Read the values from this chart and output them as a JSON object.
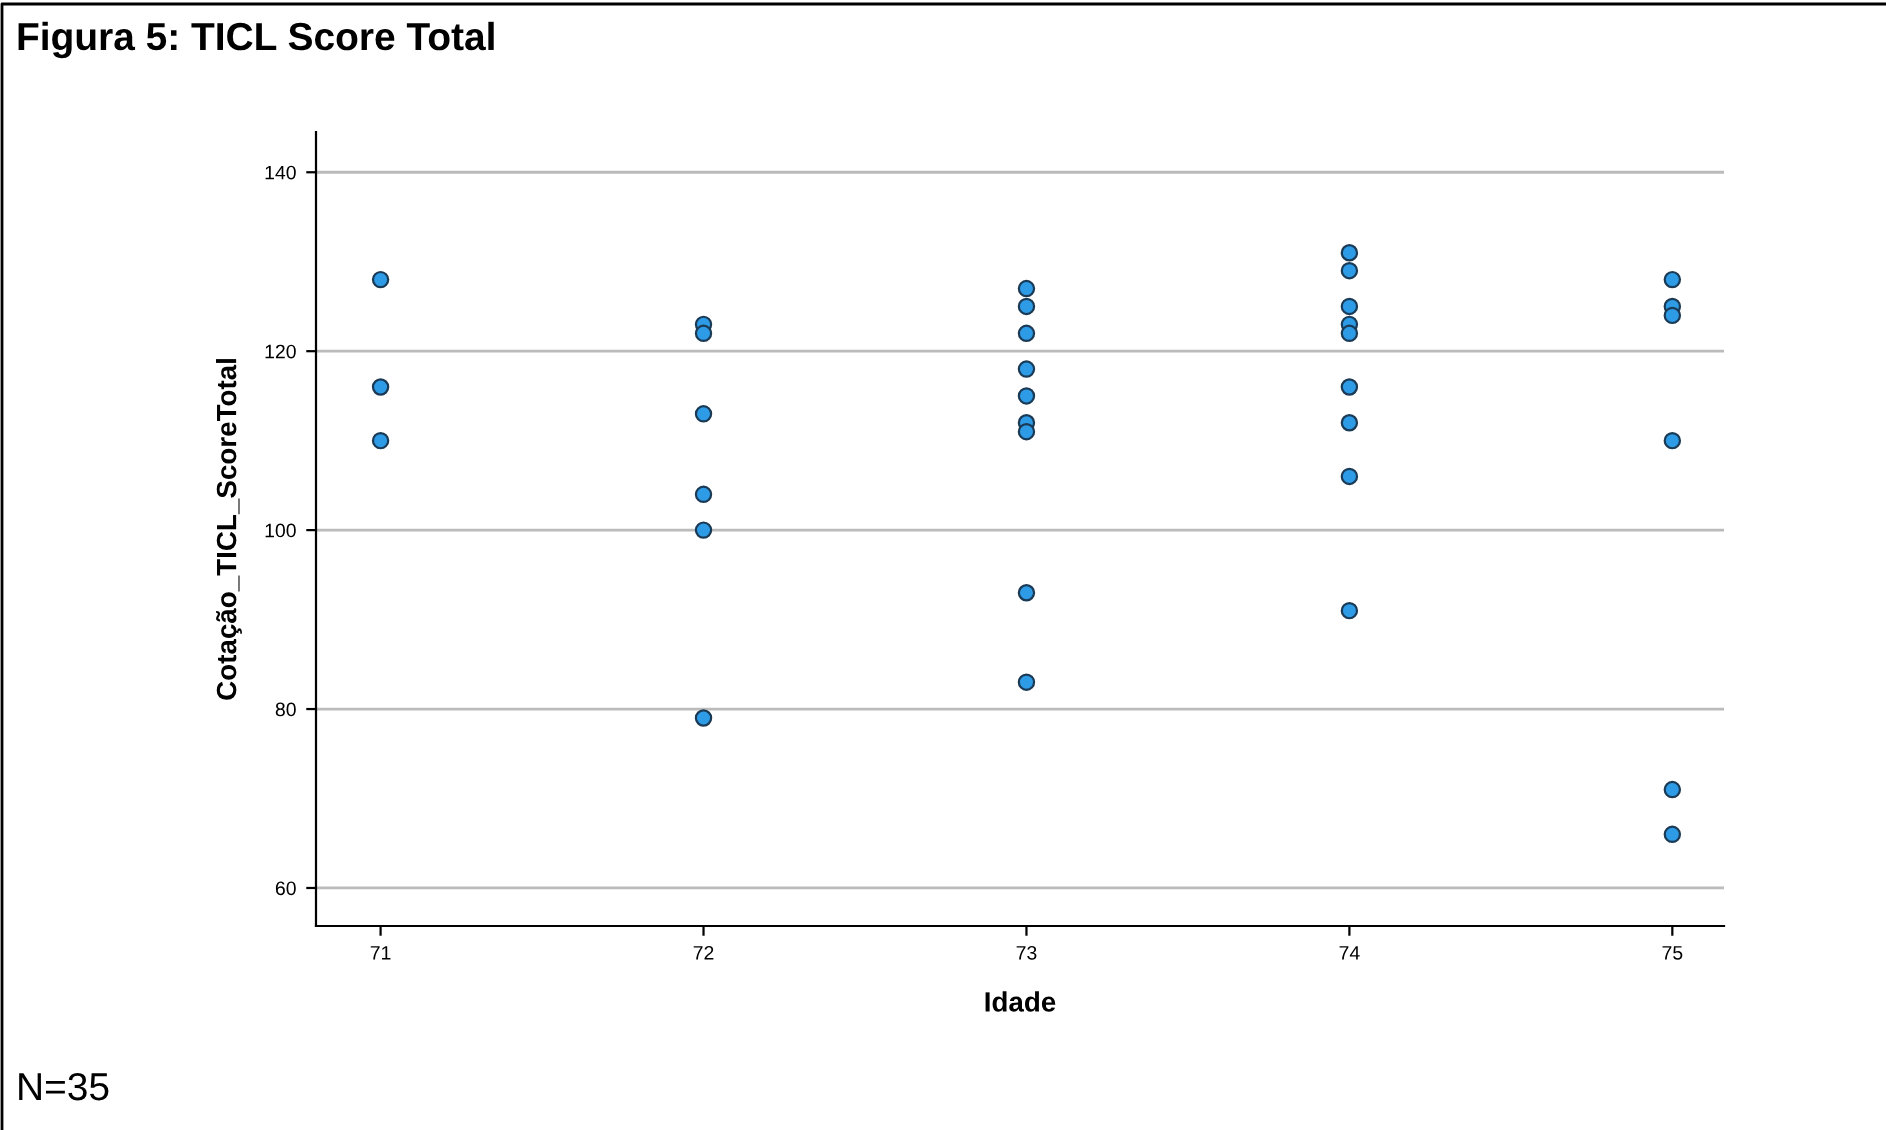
{
  "chart_data": {
    "type": "scatter",
    "title": "Figura 5: TICL Score Total",
    "xlabel": "Idade",
    "ylabel": "Cotação_TICL_ScoreTotal",
    "annotations": [
      "N=35"
    ],
    "series": [
      {
        "color": "#2e9be6",
        "x": [
          71,
          71,
          71,
          72,
          72,
          72,
          72,
          72,
          72,
          73,
          73,
          73,
          73,
          73,
          73,
          73,
          73,
          73,
          74,
          74,
          74,
          74,
          74,
          74,
          74,
          74,
          74,
          75,
          75,
          75,
          75,
          75,
          75
        ],
        "values": [
          128,
          116,
          110,
          123,
          122,
          113,
          104,
          100,
          79,
          127,
          125,
          122,
          118,
          115,
          112,
          111,
          93,
          83,
          131,
          129,
          125,
          123,
          122,
          116,
          112,
          106,
          91,
          128,
          125,
          124,
          110,
          71,
          66
        ]
      }
    ],
    "xlim": [
      70.8,
      75.16
    ],
    "xticks": [
      71,
      72,
      73,
      74,
      75
    ],
    "ylim": [
      55.75,
      144.5
    ],
    "yticks": [
      60,
      80,
      100,
      120,
      140
    ],
    "grid": "y",
    "marker": "circle",
    "legend": false
  }
}
